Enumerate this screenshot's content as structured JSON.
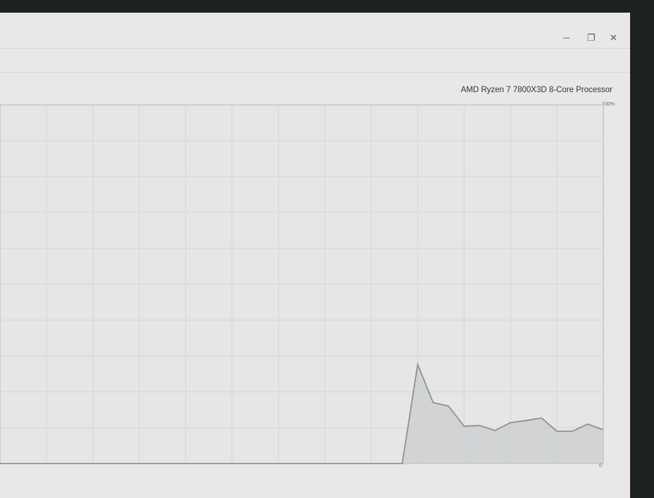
{
  "window": {
    "controls": {
      "minimize": "─",
      "maximize": "❐",
      "close": "✕"
    },
    "processor_name": "AMD Ryzen 7 7800X3D 8-Core Processor"
  },
  "chart_data": {
    "type": "area",
    "title": "",
    "ymax_label": "100%",
    "ymin_label": "0",
    "ylim": [
      0,
      100
    ],
    "grid": true,
    "grid_rows": 10,
    "grid_cols": 13,
    "line_color": "#8b9296",
    "fill_color": "#c9cccd",
    "values": [
      0,
      0,
      0,
      0,
      0,
      0,
      0,
      0,
      0,
      0,
      0,
      0,
      0,
      0,
      0,
      0,
      0,
      0,
      0,
      0,
      0,
      0,
      0,
      0,
      0,
      0,
      0,
      27.6,
      17,
      16,
      10.4,
      10.6,
      9.2,
      11.4,
      12,
      12.7,
      9,
      9,
      11,
      9.4
    ]
  }
}
